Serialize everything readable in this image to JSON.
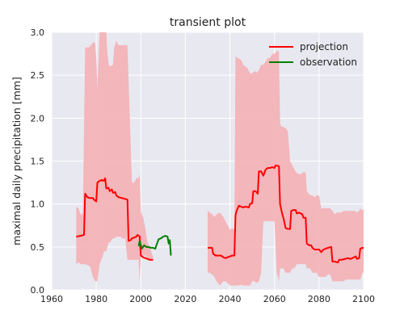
{
  "chart_data": {
    "type": "line",
    "title": "transient plot",
    "xlabel": "",
    "ylabel": "maximal daily precipitation [mm]",
    "xlim": [
      1960,
      2100
    ],
    "ylim": [
      0.0,
      3.0
    ],
    "xticks": [
      "1960",
      "1980",
      "2000",
      "2020",
      "2040",
      "2060",
      "2080",
      "2100"
    ],
    "yticks": [
      "0.0",
      "0.5",
      "1.0",
      "1.5",
      "2.0",
      "2.5",
      "3.0"
    ],
    "grid": true,
    "legend_position": "top-right",
    "colors": {
      "plot_background": "#e8e8f0",
      "grid": "#ffffff",
      "projection": "#ff0000",
      "observation": "#008000",
      "band": "#f4b0b5"
    },
    "series": [
      {
        "name": "projection",
        "segments": [
          [
            [
              1971,
              0.62
            ],
            [
              1973,
              0.63
            ],
            [
              1974.5,
              0.64
            ],
            [
              1975,
              1.12
            ],
            [
              1976,
              1.08
            ],
            [
              1977,
              1.07
            ],
            [
              1978.5,
              1.07
            ],
            [
              1979,
              1.05
            ],
            [
              1980,
              1.03
            ],
            [
              1980.5,
              1.25
            ],
            [
              1981.5,
              1.27
            ],
            [
              1982.5,
              1.28
            ],
            [
              1983.5,
              1.27
            ],
            [
              1984,
              1.3
            ],
            [
              1984.5,
              1.18
            ],
            [
              1985.5,
              1.19
            ],
            [
              1986,
              1.15
            ],
            [
              1987,
              1.17
            ],
            [
              1987.5,
              1.13
            ],
            [
              1988.5,
              1.14
            ],
            [
              1989,
              1.1
            ],
            [
              1990,
              1.08
            ],
            [
              1991.5,
              1.07
            ],
            [
              1993,
              1.06
            ],
            [
              1994,
              1.05
            ],
            [
              1994.5,
              0.57
            ],
            [
              1995.5,
              0.58
            ],
            [
              1996,
              0.6
            ],
            [
              1997,
              0.61
            ],
            [
              1998,
              0.62
            ],
            [
              1998.5,
              0.64
            ],
            [
              1999.5,
              0.62
            ],
            [
              2000,
              0.4
            ],
            [
              2001,
              0.38
            ],
            [
              2002,
              0.37
            ],
            [
              2003,
              0.36
            ],
            [
              2004,
              0.35
            ],
            [
              2005.5,
              0.35
            ]
          ],
          [
            [
              2030,
              0.49
            ],
            [
              2031,
              0.49
            ],
            [
              2032,
              0.49
            ],
            [
              2032.5,
              0.42
            ],
            [
              2033.5,
              0.4
            ],
            [
              2035,
              0.4
            ],
            [
              2036,
              0.4
            ],
            [
              2037,
              0.38
            ],
            [
              2038,
              0.37
            ],
            [
              2039,
              0.38
            ],
            [
              2040,
              0.39
            ],
            [
              2041,
              0.4
            ],
            [
              2042,
              0.4
            ],
            [
              2042.5,
              0.87
            ],
            [
              2043,
              0.92
            ],
            [
              2044,
              0.98
            ],
            [
              2045,
              0.97
            ],
            [
              2046,
              0.96
            ],
            [
              2047,
              0.97
            ],
            [
              2048.5,
              0.96
            ],
            [
              2049,
              1.0
            ],
            [
              2050,
              1.01
            ],
            [
              2050.5,
              1.15
            ],
            [
              2051.5,
              1.15
            ],
            [
              2052.5,
              1.12
            ],
            [
              2053,
              1.38
            ],
            [
              2054,
              1.38
            ],
            [
              2055,
              1.33
            ],
            [
              2056,
              1.4
            ],
            [
              2057,
              1.42
            ],
            [
              2058,
              1.42
            ],
            [
              2059,
              1.43
            ],
            [
              2060,
              1.42
            ],
            [
              2060.5,
              1.45
            ],
            [
              2062,
              1.44
            ],
            [
              2062.5,
              1.0
            ],
            [
              2063.5,
              0.88
            ],
            [
              2064,
              0.84
            ],
            [
              2065,
              0.72
            ],
            [
              2066,
              0.71
            ],
            [
              2067,
              0.71
            ],
            [
              2067.5,
              0.92
            ],
            [
              2068.5,
              0.93
            ],
            [
              2069.5,
              0.93
            ],
            [
              2070,
              0.89
            ],
            [
              2071,
              0.9
            ],
            [
              2072.5,
              0.88
            ],
            [
              2073,
              0.84
            ],
            [
              2074,
              0.84
            ],
            [
              2074.5,
              0.54
            ],
            [
              2075.5,
              0.52
            ],
            [
              2076.5,
              0.52
            ],
            [
              2077,
              0.49
            ],
            [
              2078,
              0.47
            ],
            [
              2080,
              0.47
            ],
            [
              2081,
              0.44
            ],
            [
              2082,
              0.47
            ],
            [
              2083,
              0.48
            ],
            [
              2084,
              0.49
            ],
            [
              2085.5,
              0.5
            ],
            [
              2086,
              0.33
            ],
            [
              2087,
              0.33
            ],
            [
              2088.5,
              0.32
            ],
            [
              2089,
              0.35
            ],
            [
              2090,
              0.35
            ],
            [
              2091.5,
              0.36
            ],
            [
              2093,
              0.37
            ],
            [
              2094,
              0.36
            ],
            [
              2095,
              0.37
            ],
            [
              2096.5,
              0.39
            ],
            [
              2097,
              0.36
            ],
            [
              2098,
              0.37
            ],
            [
              2098.5,
              0.48
            ],
            [
              2099.5,
              0.49
            ],
            [
              2100,
              0.49
            ]
          ]
        ]
      },
      {
        "name": "observation",
        "segments": [
          [
            [
              1999,
              0.51
            ],
            [
              1999.5,
              0.57
            ],
            [
              2000,
              0.52
            ],
            [
              2000.5,
              0.48
            ],
            [
              2001.5,
              0.52
            ],
            [
              2002.5,
              0.5
            ],
            [
              2003.5,
              0.5
            ],
            [
              2004.5,
              0.49
            ],
            [
              2005.5,
              0.49
            ],
            [
              2006.5,
              0.48
            ],
            [
              2007,
              0.52
            ],
            [
              2008,
              0.59
            ],
            [
              2009,
              0.6
            ],
            [
              2010,
              0.62
            ],
            [
              2011,
              0.63
            ],
            [
              2012,
              0.62
            ],
            [
              2012.5,
              0.54
            ],
            [
              2013,
              0.58
            ],
            [
              2013.5,
              0.4
            ]
          ]
        ]
      }
    ],
    "band": {
      "name": "projection range",
      "segments": [
        [
          [
            1971,
            0.97,
            0.3
          ],
          [
            1972,
            0.95,
            0.32
          ],
          [
            1973,
            0.88,
            0.3
          ],
          [
            1974,
            0.88,
            0.3
          ],
          [
            1975,
            2.82,
            0.3
          ],
          [
            1977,
            2.83,
            0.28
          ],
          [
            1977.5,
            2.85,
            0.25
          ],
          [
            1978.5,
            2.88,
            0.15
          ],
          [
            1979.5,
            2.88,
            0.1
          ],
          [
            1980,
            2.7,
            0.1
          ],
          [
            1980.5,
            2.35,
            0.1
          ],
          [
            1981.5,
            3.0,
            0.3
          ],
          [
            1983,
            3.0,
            0.4
          ],
          [
            1983.5,
            3.0,
            0.45
          ],
          [
            1984.5,
            3.0,
            0.45
          ],
          [
            1985,
            2.75,
            0.5
          ],
          [
            1985.5,
            2.65,
            0.55
          ],
          [
            1986,
            2.6,
            0.55
          ],
          [
            1987.5,
            2.62,
            0.6
          ],
          [
            1988,
            2.82,
            0.6
          ],
          [
            1989,
            2.9,
            0.62
          ],
          [
            1990,
            2.85,
            0.62
          ],
          [
            1991,
            2.85,
            0.62
          ],
          [
            1991.5,
            2.85,
            0.6
          ],
          [
            1993,
            2.85,
            0.6
          ],
          [
            1994,
            2.85,
            0.35
          ],
          [
            1996,
            1.25,
            0.35
          ],
          [
            1997,
            1.25,
            0.35
          ],
          [
            1998,
            1.3,
            0.35
          ],
          [
            1999,
            1.3,
            0.35
          ],
          [
            1999.5,
            1.35,
            0.1
          ],
          [
            2000,
            0.9,
            0.38
          ],
          [
            2001,
            0.85,
            0.4
          ],
          [
            2002,
            0.72,
            0.4
          ],
          [
            2003,
            0.55,
            0.36
          ],
          [
            2004,
            0.5,
            0.36
          ],
          [
            2005.5,
            0.38,
            0.35
          ]
        ],
        [
          [
            2030,
            0.92,
            0.2
          ],
          [
            2031,
            0.9,
            0.2
          ],
          [
            2032,
            0.88,
            0.18
          ],
          [
            2033,
            0.85,
            0.15
          ],
          [
            2034,
            0.88,
            0.1
          ],
          [
            2035.5,
            0.9,
            0.05
          ],
          [
            2037,
            0.85,
            0.1
          ],
          [
            2038,
            0.8,
            0.1
          ],
          [
            2039,
            0.75,
            0.08
          ],
          [
            2040,
            0.7,
            0.05
          ],
          [
            2041,
            0.72,
            0.05
          ],
          [
            2042,
            0.7,
            0.05
          ],
          [
            2042.5,
            2.72,
            0.05
          ],
          [
            2043.5,
            2.7,
            0.05
          ],
          [
            2045,
            2.68,
            0.06
          ],
          [
            2046,
            2.62,
            0.05
          ],
          [
            2047,
            2.6,
            0.05
          ],
          [
            2048,
            2.58,
            0.05
          ],
          [
            2049,
            2.52,
            0.05
          ],
          [
            2050,
            2.52,
            0.1
          ],
          [
            2051,
            2.55,
            0.1
          ],
          [
            2052,
            2.53,
            0.08
          ],
          [
            2053,
            2.56,
            0.1
          ],
          [
            2054,
            2.62,
            0.2
          ],
          [
            2055,
            2.62,
            0.8
          ],
          [
            2056,
            2.66,
            0.8
          ],
          [
            2057,
            2.7,
            0.8
          ],
          [
            2058,
            2.7,
            0.8
          ],
          [
            2059,
            2.75,
            0.8
          ],
          [
            2060,
            2.75,
            0.8
          ],
          [
            2061,
            2.78,
            0.2
          ],
          [
            2062,
            2.78,
            0.1
          ],
          [
            2062.5,
            1.95,
            0.25
          ],
          [
            2063,
            1.9,
            0.25
          ],
          [
            2064,
            1.9,
            0.25
          ],
          [
            2065,
            1.88,
            0.2
          ],
          [
            2066,
            1.85,
            0.2
          ],
          [
            2067,
            1.5,
            0.2
          ],
          [
            2068,
            1.45,
            0.25
          ],
          [
            2069,
            1.4,
            0.25
          ],
          [
            2070,
            1.36,
            0.3
          ],
          [
            2071,
            1.35,
            0.3
          ],
          [
            2072,
            1.35,
            0.3
          ],
          [
            2073,
            1.37,
            0.3
          ],
          [
            2074,
            1.37,
            0.3
          ],
          [
            2074.5,
            1.15,
            0.25
          ],
          [
            2076,
            1.1,
            0.25
          ],
          [
            2077,
            1.1,
            0.2
          ],
          [
            2078,
            1.08,
            0.2
          ],
          [
            2079,
            1.1,
            0.2
          ],
          [
            2080,
            1.1,
            0.15
          ],
          [
            2081,
            0.95,
            0.15
          ],
          [
            2082,
            0.95,
            0.15
          ],
          [
            2083,
            0.95,
            0.15
          ],
          [
            2084,
            0.95,
            0.18
          ],
          [
            2085,
            0.95,
            0.18
          ],
          [
            2086,
            0.92,
            0.1
          ],
          [
            2087,
            0.88,
            0.1
          ],
          [
            2088,
            0.9,
            0.1
          ],
          [
            2089,
            0.9,
            0.1
          ],
          [
            2090,
            0.9,
            0.1
          ],
          [
            2091,
            0.92,
            0.1
          ],
          [
            2092,
            0.92,
            0.12
          ],
          [
            2093,
            0.92,
            0.12
          ],
          [
            2094,
            0.92,
            0.12
          ],
          [
            2095,
            0.92,
            0.12
          ],
          [
            2096,
            0.92,
            0.12
          ],
          [
            2097,
            0.9,
            0.12
          ],
          [
            2098,
            0.92,
            0.12
          ],
          [
            2098.5,
            0.95,
            0.12
          ],
          [
            2099.5,
            0.92,
            0.2
          ],
          [
            2100,
            0.95,
            0.2
          ]
        ]
      ]
    }
  }
}
